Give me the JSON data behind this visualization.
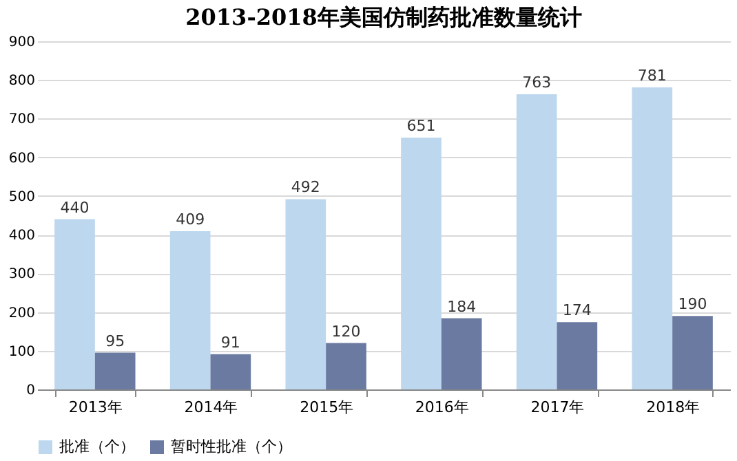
{
  "chart_data": {
    "type": "bar",
    "title": "2013-2018年美国仿制药批准数量统计",
    "categories": [
      "2013年",
      "2014年",
      "2015年",
      "2016年",
      "2017年",
      "2018年"
    ],
    "series": [
      {
        "name": "批准（个）",
        "color": "#bdd7ee",
        "values": [
          440,
          409,
          492,
          651,
          763,
          781
        ]
      },
      {
        "name": "暂时性批准（个）",
        "color": "#6b7aa1",
        "values": [
          95,
          91,
          120,
          184,
          174,
          190
        ]
      }
    ],
    "ylim": [
      0,
      900
    ],
    "yticks": [
      0,
      100,
      200,
      300,
      400,
      500,
      600,
      700,
      800,
      900
    ],
    "grid": "y",
    "legend": "bottom",
    "data_labels": true
  }
}
